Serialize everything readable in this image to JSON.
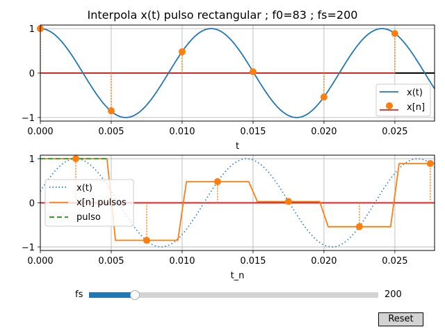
{
  "title": "Interpola x(t) pulso rectangular ; f0=83 ; fs=200",
  "chart_data": [
    {
      "type": "line",
      "title": "Interpola x(t) pulso rectangular ; f0=83 ; fs=200",
      "xlabel": "t",
      "ylabel": "",
      "xlim": [
        0,
        0.0278
      ],
      "ylim": [
        -1.08,
        1.08
      ],
      "xticks": [
        "0.000",
        "0.005",
        "0.010",
        "0.015",
        "0.020",
        "0.025"
      ],
      "yticks": [
        "−1",
        "0",
        "1"
      ],
      "grid": true,
      "legend_position": "lower right",
      "series": [
        {
          "name": "x(t)",
          "style": "solid",
          "color": "#1f77b4",
          "function": "cos(2*pi*83*t)"
        },
        {
          "name": "x[n]",
          "style": "stem",
          "color": "#ff7f0e",
          "baseline_color": "#d62728",
          "x": [
            0.0,
            0.005,
            0.01,
            0.015,
            0.02,
            0.025
          ],
          "values": [
            1.0,
            -0.85,
            0.48,
            0.03,
            -0.54,
            0.89
          ]
        }
      ]
    },
    {
      "type": "line",
      "title": "",
      "xlabel": "t_n",
      "ylabel": "",
      "xlim": [
        0,
        0.0278
      ],
      "ylim": [
        -1.08,
        1.08
      ],
      "xticks": [
        "0.000",
        "0.005",
        "0.010",
        "0.015",
        "0.020",
        "0.025"
      ],
      "yticks": [
        "−1",
        "0",
        "1"
      ],
      "grid": true,
      "legend_position": "center left",
      "series": [
        {
          "name": "x(t)",
          "style": "dotted",
          "color": "#1f77b4",
          "function": "cos(2*pi*83*(t-0.0025))"
        },
        {
          "name": "x[n] pulsos",
          "style": "solid",
          "color": "#ff7f0e",
          "x": [
            0.0025,
            0.0075,
            0.0125,
            0.0175,
            0.0225,
            0.0275
          ],
          "values": [
            1.0,
            -0.85,
            0.48,
            0.03,
            -0.54,
            0.89
          ]
        },
        {
          "name": "pulso",
          "style": "dashed",
          "color": "#2ca02c",
          "x": [
            0,
            0.0047
          ],
          "values": [
            1,
            1
          ]
        }
      ]
    }
  ],
  "legend_top": [
    "x(t)",
    "x[n]"
  ],
  "legend_bottom": [
    "x(t)",
    "x[n] pulsos",
    "pulso"
  ],
  "slider": {
    "label": "fs",
    "value": "200",
    "fill_color": "#1f77b4",
    "fraction": 0.16
  },
  "reset_label": "Reset"
}
